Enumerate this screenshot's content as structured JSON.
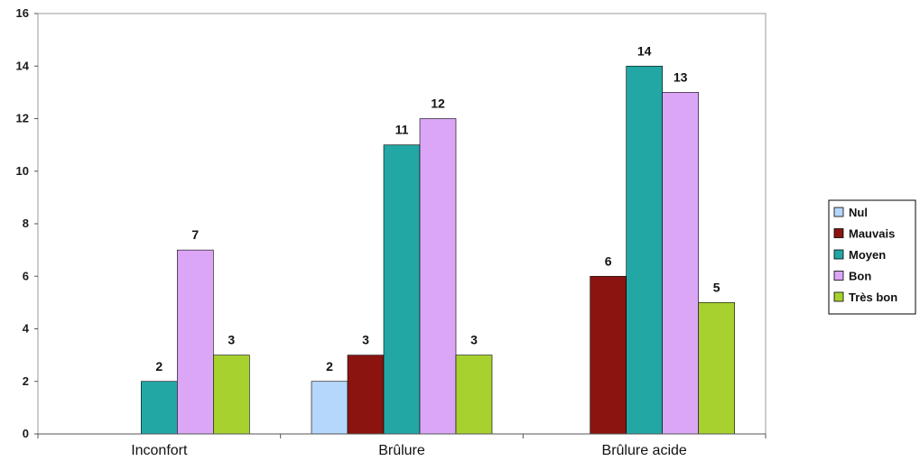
{
  "chart_data": {
    "type": "bar",
    "title": "",
    "xlabel": "",
    "ylabel": "",
    "ylim": [
      0,
      16
    ],
    "yticks": [
      0,
      2,
      4,
      6,
      8,
      10,
      12,
      14,
      16
    ],
    "grid": false,
    "legend_position": "right",
    "categories": [
      "Inconfort",
      "Brûlure",
      "Brûlure acide"
    ],
    "series": [
      {
        "name": "Nul",
        "color": "#b4d7fb",
        "values": [
          null,
          2,
          null
        ]
      },
      {
        "name": "Mauvais",
        "color": "#8b1410",
        "values": [
          null,
          3,
          6
        ]
      },
      {
        "name": "Moyen",
        "color": "#22a7a5",
        "values": [
          2,
          11,
          14
        ]
      },
      {
        "name": "Bon",
        "color": "#dca6f7",
        "values": [
          7,
          12,
          13
        ]
      },
      {
        "name": "Très bon",
        "color": "#a6d12e",
        "values": [
          3,
          3,
          5
        ]
      }
    ]
  }
}
